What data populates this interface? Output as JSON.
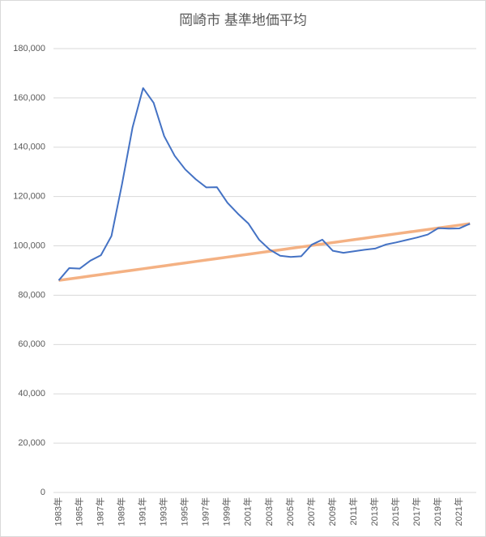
{
  "chart_data": {
    "type": "line",
    "title": "岡崎市 基準地価平均",
    "categories": [
      "1983年",
      null,
      "1985年",
      null,
      "1987年",
      null,
      "1989年",
      null,
      "1991年",
      null,
      "1993年",
      null,
      "1995年",
      null,
      "1997年",
      null,
      "1999年",
      null,
      "2001年",
      null,
      "2003年",
      null,
      "2005年",
      null,
      "2007年",
      null,
      "2009年",
      null,
      "2011年",
      null,
      "2013年",
      null,
      "2015年",
      null,
      "2017年",
      null,
      "2019年",
      null,
      "2021年",
      null
    ],
    "series": [
      {
        "color": "#4472c4",
        "values": [
          86000,
          91000,
          90800,
          94000,
          96200,
          104000,
          125000,
          148000,
          164000,
          158000,
          144500,
          136500,
          131000,
          127000,
          123700,
          123800,
          117500,
          113000,
          109000,
          102500,
          98500,
          96000,
          95500,
          95800,
          100500,
          102500,
          98000,
          97200,
          97800,
          98400,
          98900,
          100500,
          101400,
          102400,
          103400,
          104600,
          107200,
          107000,
          107100,
          109000
        ]
      },
      {
        "color": "#f4b183",
        "values": [
          86000,
          86590,
          87180,
          87770,
          88360,
          88950,
          89540,
          90130,
          90720,
          91310,
          91900,
          92490,
          93080,
          93670,
          94260,
          94850,
          95440,
          96030,
          96620,
          97210,
          97800,
          98390,
          98980,
          99570,
          100160,
          100750,
          101340,
          101930,
          102520,
          103110,
          103700,
          104290,
          104880,
          105470,
          106060,
          106650,
          107240,
          107830,
          108420,
          109010
        ]
      }
    ],
    "ylim": [
      0,
      180000
    ],
    "yticks": [
      0,
      {
        "value": 20000,
        "label": "20,000"
      },
      {
        "value": 40000,
        "label": "40,000"
      },
      {
        "value": 60000,
        "label": "60,000"
      },
      {
        "value": 80000,
        "label": "80,000"
      },
      {
        "value": 100000,
        "label": "100,000"
      },
      {
        "value": 120000,
        "label": "120,000"
      },
      {
        "value": 140000,
        "label": "140,000"
      },
      {
        "value": 160000,
        "label": "160,000"
      },
      {
        "value": 180000,
        "label": "180,000"
      }
    ],
    "grid": true
  }
}
